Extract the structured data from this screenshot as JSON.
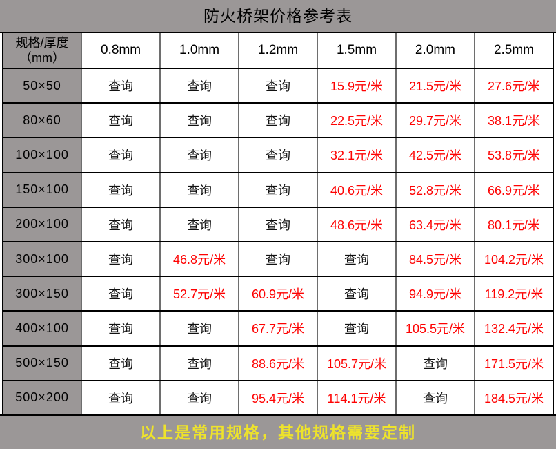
{
  "title": "防火桥架价格参考表",
  "table": {
    "corner_header": {
      "line1": "规格/厚度",
      "line2": "（mm）"
    },
    "columns": [
      "0.8mm",
      "1.0mm",
      "1.2mm",
      "1.5mm",
      "2.0mm",
      "2.5mm"
    ],
    "rows": [
      {
        "spec": "50×50",
        "cells": [
          "查询",
          "查询",
          "查询",
          "15.9元/米",
          "21.5元/米",
          "27.6元/米"
        ]
      },
      {
        "spec": "80×60",
        "cells": [
          "查询",
          "查询",
          "查询",
          "22.5元/米",
          "29.7元/米",
          "38.1元/米"
        ]
      },
      {
        "spec": "100×100",
        "cells": [
          "查询",
          "查询",
          "查询",
          "32.1元/米",
          "42.5元/米",
          "53.8元/米"
        ]
      },
      {
        "spec": "150×100",
        "cells": [
          "查询",
          "查询",
          "查询",
          "40.6元/米",
          "52.8元/米",
          "66.9元/米"
        ]
      },
      {
        "spec": "200×100",
        "cells": [
          "查询",
          "查询",
          "查询",
          "48.6元/米",
          "63.4元/米",
          "80.1元/米"
        ]
      },
      {
        "spec": "300×100",
        "cells": [
          "查询",
          "46.8元/米",
          "查询",
          "查询",
          "84.5元/米",
          "104.2元/米"
        ]
      },
      {
        "spec": "300×150",
        "cells": [
          "查询",
          "52.7元/米",
          "60.9元/米",
          "查询",
          "94.9元/米",
          "119.2元/米"
        ]
      },
      {
        "spec": "400×100",
        "cells": [
          "查询",
          "查询",
          "67.7元/米",
          "查询",
          "105.5元/米",
          "132.4元/米"
        ]
      },
      {
        "spec": "500×150",
        "cells": [
          "查询",
          "查询",
          "88.6元/米",
          "105.7元/米",
          "查询",
          "171.5元/米"
        ]
      },
      {
        "spec": "500×200",
        "cells": [
          "查询",
          "查询",
          "95.4元/米",
          "114.1元/米",
          "查询",
          "184.5元/米"
        ]
      }
    ]
  },
  "footer": {
    "note": "以上是常用规格，其他规格需要定制"
  },
  "colors": {
    "header_gray": "#9b9797",
    "price_red": "#fe0202",
    "note_yellow": "#eee32b",
    "grid_black": "#000000",
    "grid_gray": "#6e6e6e"
  }
}
